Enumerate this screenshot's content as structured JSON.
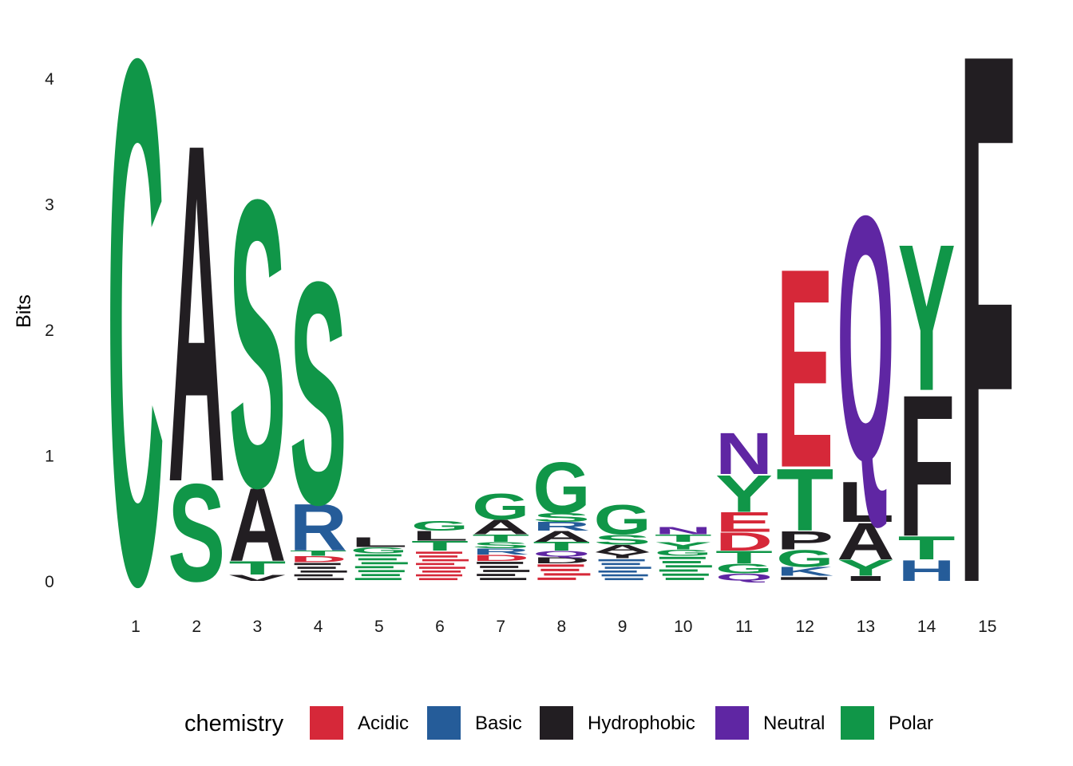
{
  "chart_data": {
    "type": "sequence-logo",
    "ylabel": "Bits",
    "xlabel": "",
    "ylim": [
      0,
      4.32
    ],
    "yticks": [
      0,
      1,
      2,
      3,
      4
    ],
    "positions": [
      "1",
      "2",
      "3",
      "4",
      "5",
      "6",
      "7",
      "8",
      "9",
      "10",
      "11",
      "12",
      "13",
      "14",
      "15"
    ],
    "legend": {
      "title": "chemistry",
      "placement": "bottom",
      "entries": [
        {
          "label": "Acidic",
          "color": "#D62839"
        },
        {
          "label": "Basic",
          "color": "#255C99"
        },
        {
          "label": "Hydrophobic",
          "color": "#221E22"
        },
        {
          "label": "Neutral",
          "color": "#5F26A3"
        },
        {
          "label": "Polar",
          "color": "#109648"
        }
      ]
    },
    "stacks": [
      [
        {
          "l": "C",
          "h": 4.29,
          "c": "Polar"
        }
      ],
      [
        {
          "l": "S",
          "h": 0.8,
          "c": "Polar"
        },
        {
          "l": "A",
          "h": 2.77,
          "c": "Hydrophobic"
        }
      ],
      [
        {
          "l": "V",
          "h": 0.05,
          "c": "Hydrophobic"
        },
        {
          "l": "T",
          "h": 0.11,
          "c": "Polar"
        },
        {
          "l": "A",
          "h": 0.6,
          "c": "Hydrophobic"
        },
        {
          "l": "S",
          "h": 2.35,
          "c": "Polar"
        }
      ],
      [
        {
          "l": "*",
          "h": 0.15,
          "c": "Hydrophobic"
        },
        {
          "l": "D",
          "h": 0.05,
          "c": "Acidic"
        },
        {
          "l": "T",
          "h": 0.04,
          "c": "Polar"
        },
        {
          "l": "R",
          "h": 0.38,
          "c": "Basic"
        },
        {
          "l": "S",
          "h": 1.82,
          "c": "Polar"
        }
      ],
      [
        {
          "l": "*",
          "h": 0.22,
          "c": "Polar"
        },
        {
          "l": "G",
          "h": 0.05,
          "c": "Polar"
        },
        {
          "l": "L",
          "h": 0.08,
          "c": "Hydrophobic"
        }
      ],
      [
        {
          "l": "*",
          "h": 0.24,
          "c": "Acidic"
        },
        {
          "l": "T",
          "h": 0.08,
          "c": "Polar"
        },
        {
          "l": "L",
          "h": 0.08,
          "c": "Hydrophobic"
        },
        {
          "l": "G",
          "h": 0.08,
          "c": "Polar"
        }
      ],
      [
        {
          "l": "*",
          "h": 0.16,
          "c": "Hydrophobic"
        },
        {
          "l": "D",
          "h": 0.05,
          "c": "Acidic"
        },
        {
          "l": "R",
          "h": 0.05,
          "c": "Basic"
        },
        {
          "l": "S",
          "h": 0.05,
          "c": "Polar"
        },
        {
          "l": "T",
          "h": 0.06,
          "c": "Polar"
        },
        {
          "l": "A",
          "h": 0.12,
          "c": "Hydrophobic"
        },
        {
          "l": "G",
          "h": 0.21,
          "c": "Polar"
        }
      ],
      [
        {
          "l": "*",
          "h": 0.14,
          "c": "Acidic"
        },
        {
          "l": "D",
          "h": 0.05,
          "c": "Hydrophobic"
        },
        {
          "l": "Q",
          "h": 0.05,
          "c": "Neutral"
        },
        {
          "l": "T",
          "h": 0.07,
          "c": "Polar"
        },
        {
          "l": "A",
          "h": 0.09,
          "c": "Hydrophobic"
        },
        {
          "l": "R",
          "h": 0.07,
          "c": "Basic"
        },
        {
          "l": "S",
          "h": 0.07,
          "c": "Polar"
        },
        {
          "l": "G",
          "h": 0.42,
          "c": "Polar"
        }
      ],
      [
        {
          "l": "*",
          "h": 0.18,
          "c": "Basic"
        },
        {
          "l": "Y",
          "h": 0.05,
          "c": "Hydrophobic"
        },
        {
          "l": "A",
          "h": 0.06,
          "c": "Hydrophobic"
        },
        {
          "l": "S",
          "h": 0.08,
          "c": "Polar"
        },
        {
          "l": "G",
          "h": 0.24,
          "c": "Polar"
        }
      ],
      [
        {
          "l": "*",
          "h": 0.2,
          "c": "Polar"
        },
        {
          "l": "G",
          "h": 0.05,
          "c": "Polar"
        },
        {
          "l": "Y",
          "h": 0.06,
          "c": "Polar"
        },
        {
          "l": "T",
          "h": 0.06,
          "c": "Polar"
        },
        {
          "l": "N",
          "h": 0.06,
          "c": "Neutral"
        }
      ],
      [
        {
          "l": "Q",
          "h": 0.06,
          "c": "Neutral"
        },
        {
          "l": "G",
          "h": 0.08,
          "c": "Polar"
        },
        {
          "l": "T",
          "h": 0.1,
          "c": "Polar"
        },
        {
          "l": "D",
          "h": 0.15,
          "c": "Acidic"
        },
        {
          "l": "E",
          "h": 0.16,
          "c": "Acidic"
        },
        {
          "l": "Y",
          "h": 0.3,
          "c": "Polar"
        },
        {
          "l": "N",
          "h": 0.34,
          "c": "Neutral"
        }
      ],
      [
        {
          "l": "*",
          "h": 0.04,
          "c": "Hydrophobic"
        },
        {
          "l": "K",
          "h": 0.07,
          "c": "Basic"
        },
        {
          "l": "G",
          "h": 0.14,
          "c": "Polar"
        },
        {
          "l": "P",
          "h": 0.15,
          "c": "Hydrophobic"
        },
        {
          "l": "T",
          "h": 0.51,
          "c": "Polar"
        },
        {
          "l": "E",
          "h": 1.63,
          "c": "Acidic"
        }
      ],
      [
        {
          "l": "I",
          "h": 0.04,
          "c": "Hydrophobic"
        },
        {
          "l": "Y",
          "h": 0.13,
          "c": "Polar"
        },
        {
          "l": "A",
          "h": 0.3,
          "c": "Hydrophobic"
        },
        {
          "l": "L",
          "h": 0.33,
          "c": "Hydrophobic"
        },
        {
          "l": "Q",
          "h": 2.17,
          "c": "Neutral"
        }
      ],
      [
        {
          "l": "H",
          "h": 0.17,
          "c": "Basic"
        },
        {
          "l": "T",
          "h": 0.19,
          "c": "Polar"
        },
        {
          "l": "F",
          "h": 1.16,
          "c": "Hydrophobic"
        },
        {
          "l": "Y",
          "h": 1.2,
          "c": "Polar"
        }
      ],
      [
        {
          "l": "F",
          "h": 4.35,
          "c": "Hydrophobic"
        }
      ]
    ]
  }
}
